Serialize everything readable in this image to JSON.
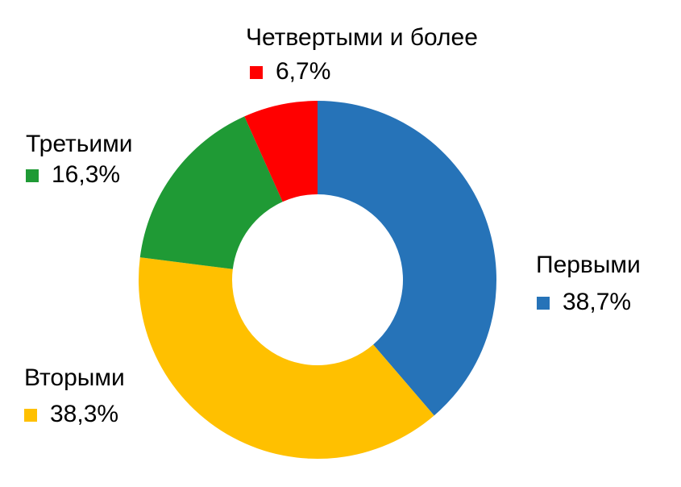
{
  "chart_data": {
    "type": "donut",
    "categories": [
      "Первыми",
      "Вторыми",
      "Третьими",
      "Четвертыми и более"
    ],
    "values": [
      38.7,
      38.3,
      16.3,
      6.7
    ],
    "value_labels": [
      "38,7%",
      "38,3%",
      "16,3%",
      "6,7%"
    ],
    "colors": [
      "#2673b8",
      "#ffc000",
      "#1f9a35",
      "#ff0000"
    ]
  }
}
